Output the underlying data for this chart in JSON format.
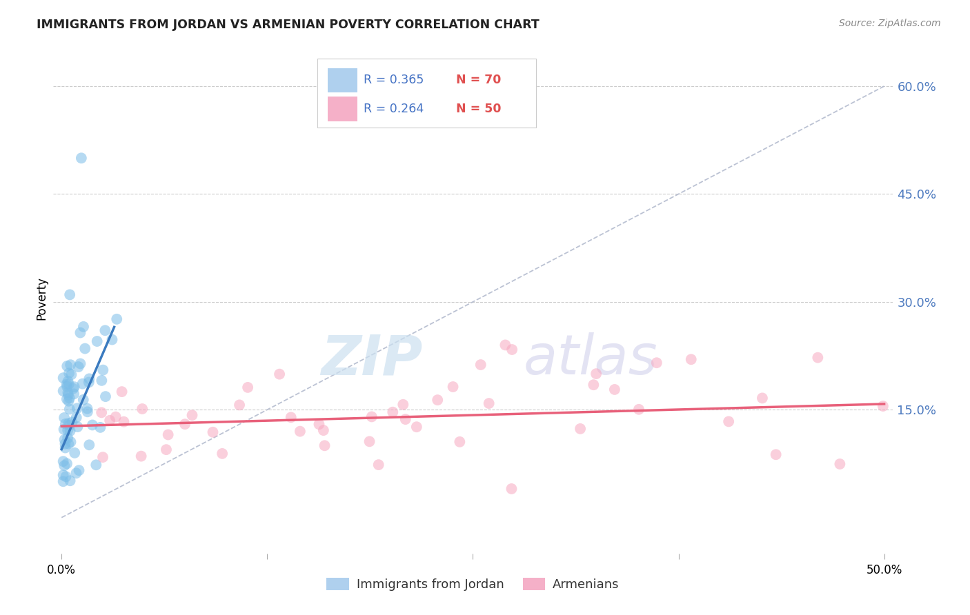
{
  "title": "IMMIGRANTS FROM JORDAN VS ARMENIAN POVERTY CORRELATION CHART",
  "source": "Source: ZipAtlas.com",
  "ylabel": "Poverty",
  "legend_label1": "Immigrants from Jordan",
  "legend_label2": "Armenians",
  "legend_R1": "R = 0.365",
  "legend_N1": "N = 70",
  "legend_R2": "R = 0.264",
  "legend_N2": "N = 50",
  "color_jordan": "#7bbde8",
  "color_armenian": "#f7a8c0",
  "color_jordan_line": "#3a7abf",
  "color_armenian_line": "#e8607a",
  "color_diag_line": "#b0b8cc",
  "background_color": "#ffffff",
  "xlim_min": 0.0,
  "xlim_max": 0.5,
  "ylim_min": -0.05,
  "ylim_max": 0.66,
  "yticks": [
    0.6,
    0.45,
    0.3,
    0.15
  ],
  "ytick_labels": [
    "60.0%",
    "45.0%",
    "30.0%",
    "15.0%"
  ],
  "xtick_positions": [
    0.0,
    0.125,
    0.25,
    0.375,
    0.5
  ],
  "xtick_labels": [
    "0.0%",
    "",
    "",
    "",
    "50.0%"
  ]
}
